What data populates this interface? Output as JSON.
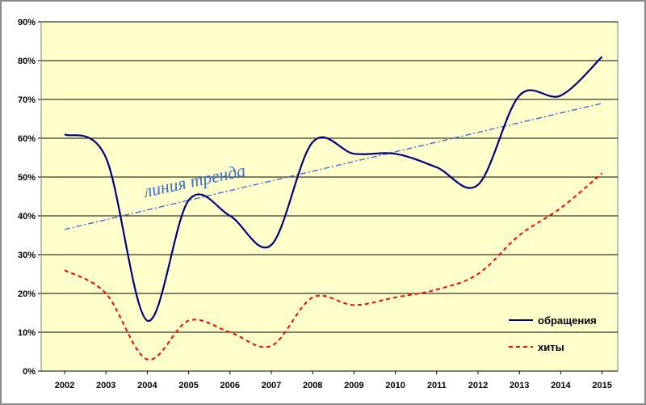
{
  "chart_data": {
    "type": "line",
    "title": "",
    "xlabel": "",
    "ylabel": "",
    "x": [
      "2002",
      "2003",
      "2004",
      "2005",
      "2006",
      "2007",
      "2008",
      "2009",
      "2010",
      "2011",
      "2012",
      "2013",
      "2014",
      "2015"
    ],
    "ylim": [
      0,
      90
    ],
    "y_ticks": [
      "0%",
      "10%",
      "20%",
      "30%",
      "40%",
      "50%",
      "60%",
      "70%",
      "80%",
      "90%"
    ],
    "grid": "horizontal",
    "legend_position": "bottom-right",
    "series": [
      {
        "name": "обращения",
        "color": "#000080",
        "style": "solid",
        "values": [
          61,
          55,
          13,
          44,
          40,
          32.5,
          59,
          56,
          56,
          52.5,
          48,
          71,
          71,
          81
        ]
      },
      {
        "name": "хиты",
        "color": "#ff0000",
        "style": "dashed",
        "values": [
          26,
          20,
          3,
          13,
          10,
          6.5,
          19,
          17,
          19,
          21,
          25,
          35,
          42,
          51
        ]
      }
    ],
    "trendline": {
      "label": "линия тренда",
      "color": "#3a6fd8",
      "style": "dash-dot",
      "start": 36.5,
      "end": 69
    },
    "colors": {
      "plot_background": "#ffffcc",
      "grid": "#000000"
    }
  }
}
